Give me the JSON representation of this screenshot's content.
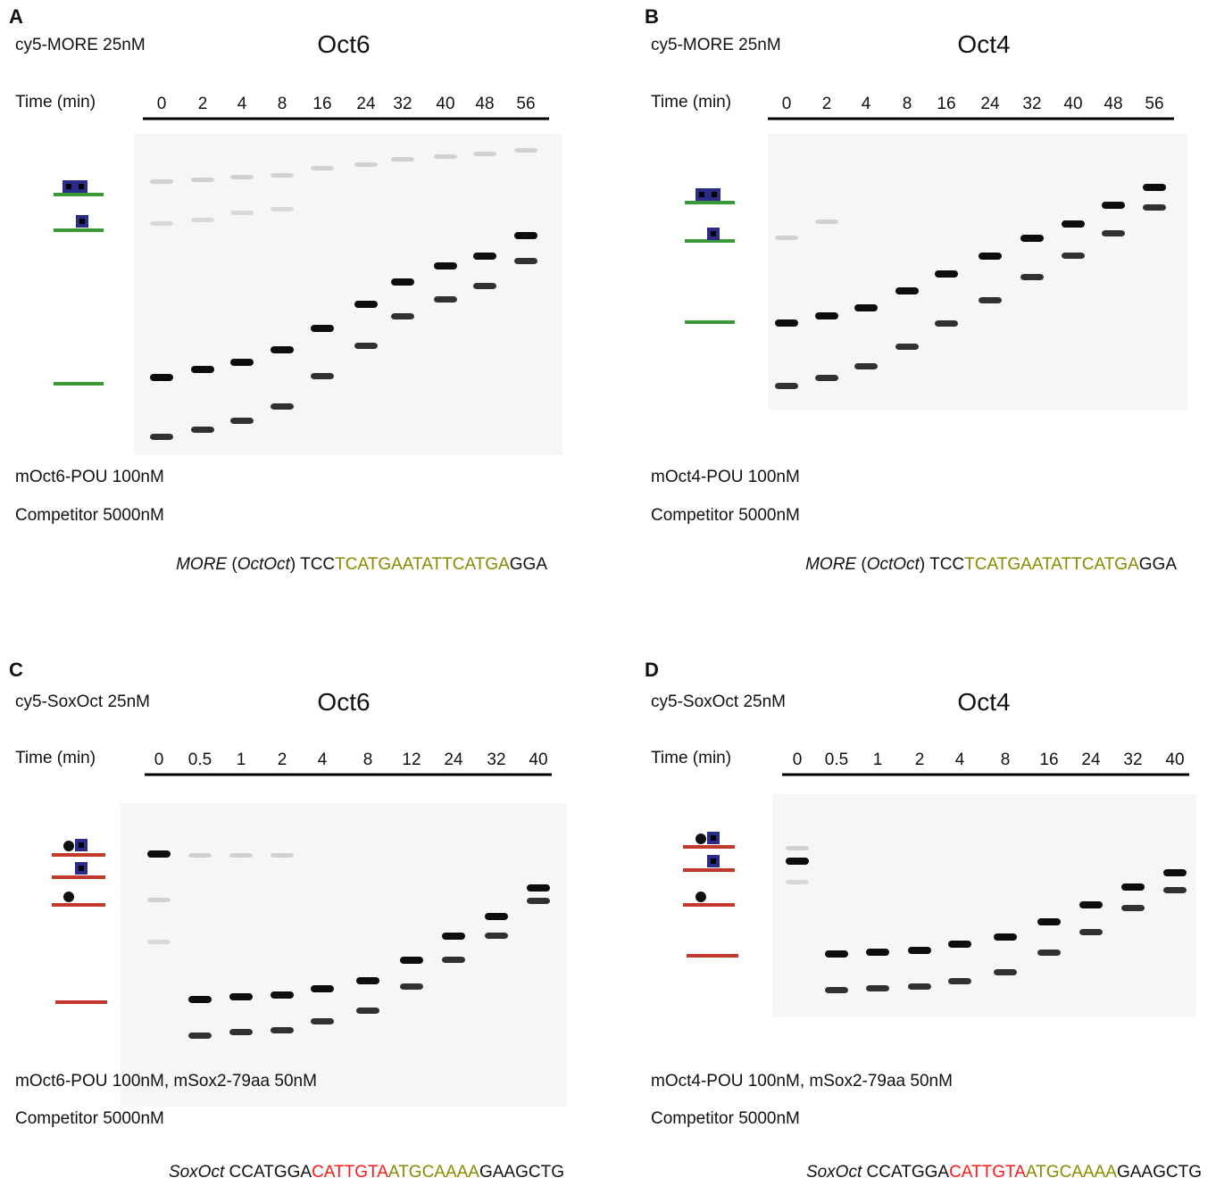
{
  "panels": [
    {
      "label": "A",
      "probe": "cy5-MORE 25nM",
      "title": "Oct6",
      "time_label": "Time (min)",
      "times": [
        0,
        2,
        4,
        8,
        16,
        24,
        32,
        40,
        48,
        56
      ],
      "protein": "mOct6-POU 100nM",
      "competitor": "Competitor 5000nM",
      "sequence": [
        {
          "text": "MORE",
          "italic": true
        },
        {
          "text": " ("
        },
        {
          "text": "OctOct",
          "italic": true
        },
        {
          "text": ") TCC"
        },
        {
          "text": "TCATGAATATTCATGA",
          "color": "#8a8a00"
        },
        {
          "text": "GGA"
        }
      ]
    },
    {
      "label": "B",
      "probe": "cy5-MORE 25nM",
      "title": "Oct4",
      "time_label": "Time (min)",
      "times": [
        0,
        2,
        4,
        8,
        16,
        24,
        32,
        40,
        48,
        56
      ],
      "protein": "mOct4-POU 100nM",
      "competitor": "Competitor 5000nM",
      "sequence": [
        {
          "text": "MORE",
          "italic": true
        },
        {
          "text": " ("
        },
        {
          "text": "OctOct",
          "italic": true
        },
        {
          "text": ") TCC"
        },
        {
          "text": "TCATGAATATTCATGA",
          "color": "#8a8a00"
        },
        {
          "text": "GGA"
        }
      ]
    },
    {
      "label": "C",
      "probe": "cy5-SoxOct 25nM",
      "title": "Oct6",
      "time_label": "Time (min)",
      "times": [
        0,
        0.5,
        1,
        2,
        4,
        8,
        12,
        24,
        32,
        40
      ],
      "protein": "mOct6-POU 100nM, mSox2-79aa 50nM",
      "competitor": "Competitor 5000nM",
      "sequence": [
        {
          "text": "SoxOct",
          "italic": true
        },
        {
          "text": " CCATGGA"
        },
        {
          "text": "CATTGTA",
          "color": "#ff1a1a"
        },
        {
          "text": "ATGCAAAA",
          "color": "#8a8a00"
        },
        {
          "text": "GAAGCTG"
        }
      ]
    },
    {
      "label": "D",
      "probe": "cy5-SoxOct 25nM",
      "title": "Oct4",
      "time_label": "Time (min)",
      "times": [
        0,
        0.5,
        1,
        2,
        4,
        8,
        16,
        24,
        32,
        40
      ],
      "protein": "mOct4-POU 100nM, mSox2-79aa 50nM",
      "competitor": "Competitor 5000nM",
      "sequence": [
        {
          "text": "SoxOct",
          "italic": true
        },
        {
          "text": " CCATGGA"
        },
        {
          "text": "CATTGTA",
          "color": "#ff1a1a"
        },
        {
          "text": "ATGCAAAA",
          "color": "#8a8a00"
        },
        {
          "text": "GAAGCTG"
        }
      ]
    }
  ]
}
